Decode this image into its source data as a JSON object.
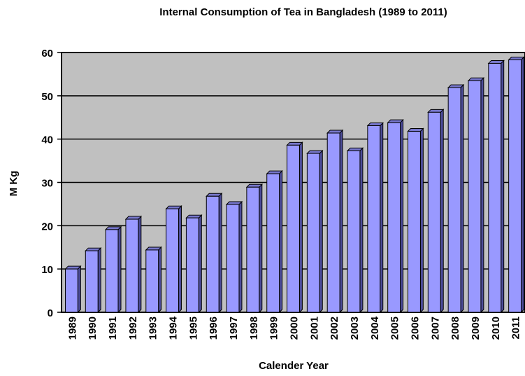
{
  "chart_data": {
    "type": "bar",
    "title": "Internal Consumption of Tea in Bangladesh (1989 to 2011)",
    "x_label": "Calender Year",
    "y_label": "M Kg",
    "categories": [
      "1989",
      "1990",
      "1991",
      "1992",
      "1993",
      "1994",
      "1995",
      "1996",
      "1997",
      "1998",
      "1999",
      "2000",
      "2001",
      "2002",
      "2003",
      "2004",
      "2005",
      "2006",
      "2007",
      "2008",
      "2009",
      "2010",
      "2011"
    ],
    "values": [
      10,
      14.2,
      19.1,
      21.5,
      14.4,
      23.9,
      21.8,
      26.8,
      24.9,
      28.9,
      32,
      38.6,
      36.7,
      41.4,
      37.3,
      43.1,
      43.8,
      41.8,
      46.2,
      51.9,
      53.5,
      57.5,
      58.3
    ],
    "color": "#9999ff",
    "ylim": [
      0,
      60
    ],
    "yticks": [
      0,
      10,
      20,
      30,
      40,
      50,
      60
    ],
    "grid": true
  }
}
